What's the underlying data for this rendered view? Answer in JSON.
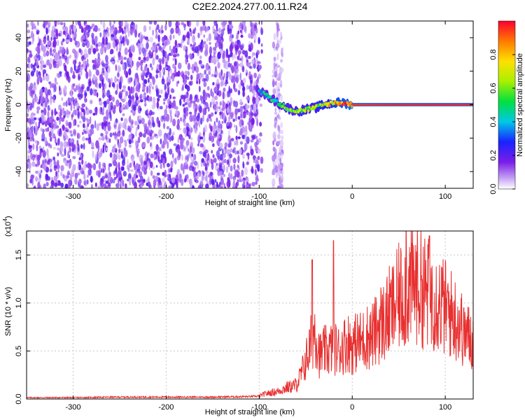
{
  "figure": {
    "title": "C2E2.2024.277.00.11.R24"
  },
  "chart_data": [
    {
      "type": "heatmap",
      "xlabel": "Height of straight line (km)",
      "ylabel": "Frequency (Hz)",
      "xlim": [
        -350,
        130
      ],
      "ylim": [
        -50,
        50
      ],
      "xticks": [
        -300,
        -200,
        -100,
        0,
        100
      ],
      "yticks": [
        -40,
        -20,
        0,
        20,
        40
      ],
      "colorbar": {
        "label": "Normalized spectral amplitude",
        "range": [
          0,
          1
        ],
        "ticks": [
          "0.0",
          "0.2",
          "0.4",
          "0.6",
          "0.8"
        ],
        "colormap": "rainbow"
      },
      "regions": [
        {
          "x_range": [
            -350,
            -97
          ],
          "freq_range": [
            -50,
            50
          ],
          "amplitude": 0.15,
          "description": "broadband noise"
        },
        {
          "x_range": [
            -85,
            -75
          ],
          "freq_range": [
            -50,
            50
          ],
          "amplitude": 0.08,
          "description": "faint noise strip"
        },
        {
          "x_range": [
            -100,
            130
          ],
          "freq_center": 0,
          "amplitude": 0.95,
          "description": "narrow signal band near 0 Hz"
        }
      ],
      "signal_ridge": {
        "x": [
          -100,
          -90,
          -80,
          -70,
          -60,
          -50,
          -40,
          -30,
          -20,
          -10,
          0,
          50,
          130
        ],
        "freq": [
          8,
          5,
          1,
          -2,
          -4,
          -3,
          -2,
          0,
          1,
          1,
          0,
          0,
          0
        ],
        "amplitude": [
          0.45,
          0.5,
          0.55,
          0.6,
          0.62,
          0.65,
          0.68,
          0.75,
          0.85,
          0.9,
          0.95,
          0.97,
          0.97
        ]
      }
    },
    {
      "type": "line",
      "xlabel": "Height of straight line (km)",
      "ylabel": "SNR (10 * v/v)",
      "exponent_label": "(x10",
      "exponent_power": "4",
      "xlim": [
        -350,
        130
      ],
      "ylim": [
        0,
        1.75
      ],
      "xticks": [
        -300,
        -200,
        -100,
        0,
        100
      ],
      "yticks": [
        "0.0",
        "0.5",
        "1.0",
        "1.5"
      ],
      "grid": true,
      "color": "#e83030",
      "series": [
        {
          "x": [
            -350,
            -300,
            -250,
            -200,
            -150,
            -110,
            -100,
            -95,
            -90,
            -85,
            -80,
            -75,
            -70,
            -65,
            -60,
            -55,
            -50,
            -45,
            -40,
            -35,
            -30,
            -25,
            -20,
            -15,
            -10,
            -5,
            0,
            5,
            10,
            15,
            20,
            25,
            30,
            35,
            40,
            45,
            50,
            55,
            60,
            65,
            70,
            75,
            80,
            85,
            90,
            95,
            100,
            105,
            110,
            115,
            120,
            125,
            130
          ],
          "y": [
            0.015,
            0.015,
            0.02,
            0.02,
            0.02,
            0.025,
            0.03,
            0.05,
            0.06,
            0.07,
            0.08,
            0.1,
            0.12,
            0.13,
            0.15,
            0.25,
            0.4,
            0.55,
            0.75,
            0.45,
            0.5,
            0.5,
            0.55,
            0.5,
            0.55,
            0.6,
            0.55,
            0.6,
            0.6,
            0.65,
            0.65,
            0.7,
            0.8,
            0.8,
            0.9,
            0.95,
            1.05,
            1.1,
            1.15,
            1.2,
            1.2,
            1.15,
            1.1,
            1.1,
            1.05,
            1.0,
            0.95,
            0.9,
            0.85,
            0.8,
            0.7,
            0.65,
            0.6
          ],
          "peaks": [
            {
              "x": -43,
              "y": 1.45
            },
            {
              "x": -20,
              "y": 1.65
            },
            {
              "x": 58,
              "y": 1.75
            },
            {
              "x": 83,
              "y": 1.7
            },
            {
              "x": 120,
              "y": 0.95
            }
          ]
        }
      ]
    }
  ]
}
